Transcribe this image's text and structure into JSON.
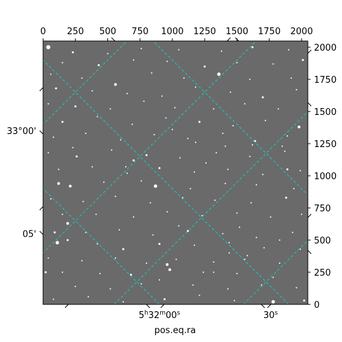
{
  "chart_data": {
    "type": "scatter",
    "title": "",
    "xlabel": "pos.eq.ra",
    "ylabel": "",
    "pixel_axes": {
      "x_ticks": [
        "0",
        "250",
        "500",
        "750",
        "1000",
        "1250",
        "1500",
        "1750",
        "2000"
      ],
      "y_ticks": [
        "0",
        "250",
        "500",
        "750",
        "1000",
        "1250",
        "1500",
        "1750",
        "2000"
      ],
      "xlim": [
        0,
        2048
      ],
      "ylim": [
        0,
        2048
      ]
    },
    "world_axes": {
      "ra_labels": [
        {
          "h": "5",
          "m": "32",
          "s": "00",
          "x_pix": 900
        },
        {
          "h": "",
          "m": "",
          "s": "30",
          "x_pix": 1760
        }
      ],
      "dec_labels": [
        {
          "text": "33°00'",
          "y_pix": 1350
        },
        {
          "text": "05'",
          "y_pix": 550
        }
      ]
    },
    "grid": {
      "color": "#19c9c9",
      "style": "dashed",
      "ra_lines_x0_pix": [
        -1400,
        -400,
        550,
        1550,
        2550
      ],
      "dec_lines_x0_pix": [
        2900,
        1900,
        900,
        -50,
        -1050
      ]
    },
    "image": {
      "background": "#6a6a6a",
      "description_free": true
    },
    "stars": [
      [
        40,
        2000,
        6
      ],
      [
        230,
        1960,
        3
      ],
      [
        500,
        1950,
        2
      ],
      [
        760,
        1990,
        2
      ],
      [
        1050,
        1980,
        2
      ],
      [
        1380,
        1970,
        2
      ],
      [
        1620,
        2000,
        3
      ],
      [
        1900,
        1980,
        2
      ],
      [
        150,
        1880,
        2
      ],
      [
        430,
        1860,
        3
      ],
      [
        700,
        1900,
        2
      ],
      [
        960,
        1890,
        2
      ],
      [
        1250,
        1850,
        3
      ],
      [
        1500,
        1880,
        2
      ],
      [
        1780,
        1870,
        2
      ],
      [
        2010,
        1900,
        3
      ],
      [
        60,
        1790,
        2
      ],
      [
        300,
        1760,
        2
      ],
      [
        560,
        1710,
        4
      ],
      [
        840,
        1800,
        2
      ],
      [
        1090,
        1760,
        2
      ],
      [
        1360,
        1790,
        5
      ],
      [
        1600,
        1750,
        2
      ],
      [
        1920,
        1760,
        2
      ],
      [
        100,
        1680,
        3
      ],
      [
        380,
        1660,
        2
      ],
      [
        650,
        1640,
        2
      ],
      [
        920,
        1620,
        2
      ],
      [
        1180,
        1690,
        2
      ],
      [
        1450,
        1650,
        2
      ],
      [
        1700,
        1610,
        3
      ],
      [
        1960,
        1670,
        2
      ],
      [
        40,
        1560,
        2
      ],
      [
        250,
        1540,
        3
      ],
      [
        520,
        1520,
        2
      ],
      [
        780,
        1580,
        2
      ],
      [
        1020,
        1530,
        2
      ],
      [
        1320,
        1520,
        2
      ],
      [
        1560,
        1560,
        2
      ],
      [
        1820,
        1520,
        2
      ],
      [
        150,
        1420,
        3
      ],
      [
        420,
        1460,
        2
      ],
      [
        690,
        1400,
        2
      ],
      [
        950,
        1450,
        2
      ],
      [
        1210,
        1420,
        3
      ],
      [
        1470,
        1390,
        2
      ],
      [
        1720,
        1430,
        2
      ],
      [
        1980,
        1380,
        4
      ],
      [
        80,
        1300,
        2
      ],
      [
        330,
        1330,
        2
      ],
      [
        600,
        1280,
        2
      ],
      [
        860,
        1320,
        2
      ],
      [
        1120,
        1290,
        2
      ],
      [
        1390,
        1330,
        2
      ],
      [
        1640,
        1270,
        3
      ],
      [
        1890,
        1310,
        2
      ],
      [
        40,
        1180,
        2
      ],
      [
        260,
        1150,
        3
      ],
      [
        530,
        1200,
        2
      ],
      [
        800,
        1160,
        3
      ],
      [
        1060,
        1140,
        2
      ],
      [
        1340,
        1180,
        2
      ],
      [
        1600,
        1150,
        2
      ],
      [
        1870,
        1190,
        2
      ],
      [
        120,
        1050,
        2
      ],
      [
        380,
        1070,
        2
      ],
      [
        650,
        1020,
        2
      ],
      [
        900,
        1060,
        3
      ],
      [
        1170,
        1030,
        2
      ],
      [
        1430,
        1050,
        2
      ],
      [
        1700,
        1010,
        2
      ],
      [
        1990,
        1040,
        2
      ],
      [
        120,
        940,
        4
      ],
      [
        210,
        920,
        4
      ],
      [
        470,
        950,
        2
      ],
      [
        760,
        960,
        2
      ],
      [
        870,
        920,
        5
      ],
      [
        1140,
        900,
        2
      ],
      [
        1410,
        940,
        2
      ],
      [
        1650,
        930,
        2
      ],
      [
        1940,
        900,
        2
      ],
      [
        60,
        820,
        2
      ],
      [
        310,
        800,
        2
      ],
      [
        560,
        840,
        2
      ],
      [
        830,
        790,
        2
      ],
      [
        1080,
        830,
        2
      ],
      [
        1330,
        810,
        2
      ],
      [
        1610,
        790,
        2
      ],
      [
        1880,
        830,
        3
      ],
      [
        150,
        700,
        2
      ],
      [
        190,
        630,
        4
      ],
      [
        410,
        700,
        2
      ],
      [
        700,
        680,
        2
      ],
      [
        960,
        720,
        2
      ],
      [
        1230,
        690,
        2
      ],
      [
        1500,
        710,
        2
      ],
      [
        1760,
        680,
        2
      ],
      [
        2000,
        700,
        2
      ],
      [
        90,
        560,
        3
      ],
      [
        330,
        560,
        2
      ],
      [
        590,
        580,
        2
      ],
      [
        850,
        540,
        2
      ],
      [
        1120,
        570,
        3
      ],
      [
        1390,
        550,
        2
      ],
      [
        1650,
        520,
        2
      ],
      [
        1930,
        560,
        2
      ],
      [
        110,
        480,
        5
      ],
      [
        190,
        500,
        3
      ],
      [
        420,
        470,
        2
      ],
      [
        620,
        430,
        3
      ],
      [
        900,
        470,
        3
      ],
      [
        1170,
        460,
        2
      ],
      [
        1440,
        480,
        2
      ],
      [
        1710,
        440,
        2
      ],
      [
        1990,
        430,
        2
      ],
      [
        40,
        360,
        2
      ],
      [
        300,
        340,
        2
      ],
      [
        560,
        360,
        2
      ],
      [
        800,
        320,
        2
      ],
      [
        1030,
        350,
        2
      ],
      [
        1320,
        330,
        2
      ],
      [
        1560,
        350,
        2
      ],
      [
        1830,
        320,
        2
      ],
      [
        150,
        250,
        2
      ],
      [
        440,
        240,
        2
      ],
      [
        680,
        230,
        3
      ],
      [
        960,
        310,
        4
      ],
      [
        980,
        270,
        4
      ],
      [
        1240,
        250,
        2
      ],
      [
        1500,
        240,
        2
      ],
      [
        1780,
        210,
        2
      ],
      [
        20,
        250,
        3
      ],
      [
        250,
        140,
        2
      ],
      [
        520,
        120,
        2
      ],
      [
        760,
        160,
        2
      ],
      [
        900,
        190,
        2
      ],
      [
        1160,
        150,
        2
      ],
      [
        1430,
        120,
        2
      ],
      [
        1690,
        150,
        2
      ],
      [
        1960,
        130,
        2
      ],
      [
        80,
        40,
        2
      ],
      [
        350,
        60,
        2
      ],
      [
        620,
        20,
        2
      ],
      [
        940,
        40,
        3
      ],
      [
        1210,
        70,
        2
      ],
      [
        1480,
        30,
        2
      ],
      [
        1780,
        20,
        5
      ],
      [
        2020,
        30,
        3
      ],
      [
        1440,
        400,
        2
      ],
      [
        1520,
        600,
        2
      ],
      [
        1580,
        380,
        2
      ],
      [
        1830,
        500,
        2
      ],
      [
        1320,
        250,
        2
      ],
      [
        1050,
        610,
        2
      ],
      [
        1890,
        1050,
        3
      ],
      [
        1850,
        1230,
        2
      ],
      [
        1260,
        1100,
        2
      ],
      [
        1180,
        1260,
        2
      ],
      [
        1410,
        1230,
        2
      ],
      [
        1620,
        1240,
        2
      ],
      [
        700,
        1120,
        3
      ],
      [
        640,
        1070,
        2
      ],
      [
        1000,
        1360,
        2
      ],
      [
        230,
        1220,
        2
      ]
    ]
  }
}
